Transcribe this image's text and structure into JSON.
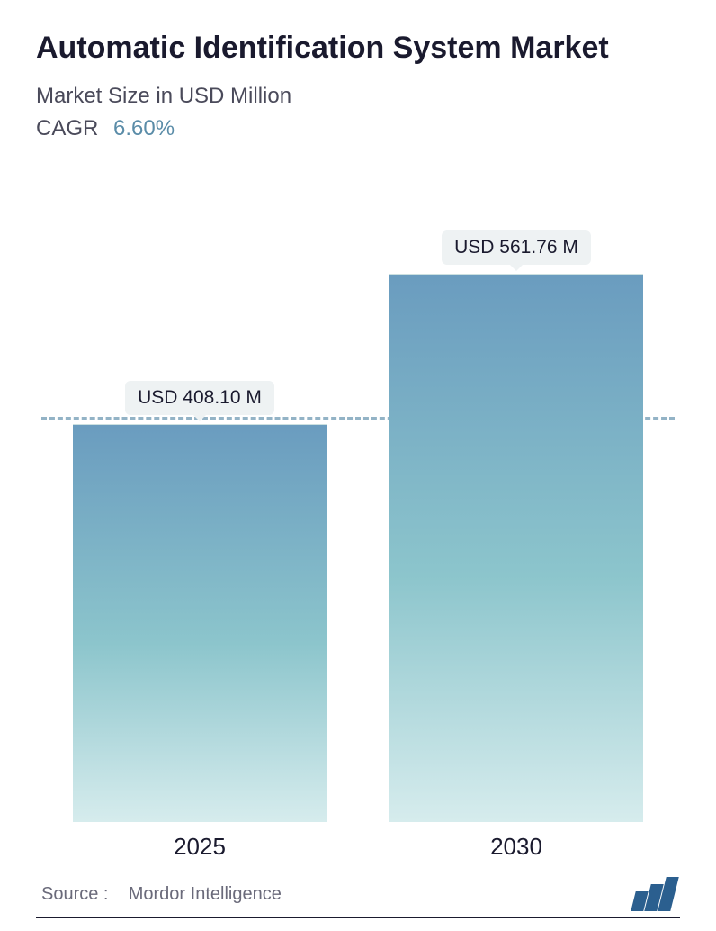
{
  "header": {
    "title": "Automatic Identification System Market",
    "subtitle": "Market Size in USD Million",
    "cagr_label": "CAGR",
    "cagr_value": "6.60%"
  },
  "chart": {
    "type": "bar",
    "reference_value": 408.1,
    "reference_line_color": "#5a8ca8",
    "ylim": [
      0,
      620
    ],
    "bar_gradient_top": "#6a9cbf",
    "bar_gradient_mid": "#8cc5cc",
    "bar_gradient_bottom": "#d6eced",
    "background_color": "#ffffff",
    "value_label_bg": "#eef2f3",
    "title_fontsize": 34,
    "label_fontsize": 21,
    "year_fontsize": 26,
    "bars": [
      {
        "year": "2025",
        "value": 408.1,
        "label": "USD 408.10 M"
      },
      {
        "year": "2030",
        "value": 561.76,
        "label": "USD 561.76 M"
      }
    ]
  },
  "footer": {
    "source_prefix": "Source :",
    "source_name": "Mordor Intelligence",
    "logo_color": "#2b5f8f"
  }
}
